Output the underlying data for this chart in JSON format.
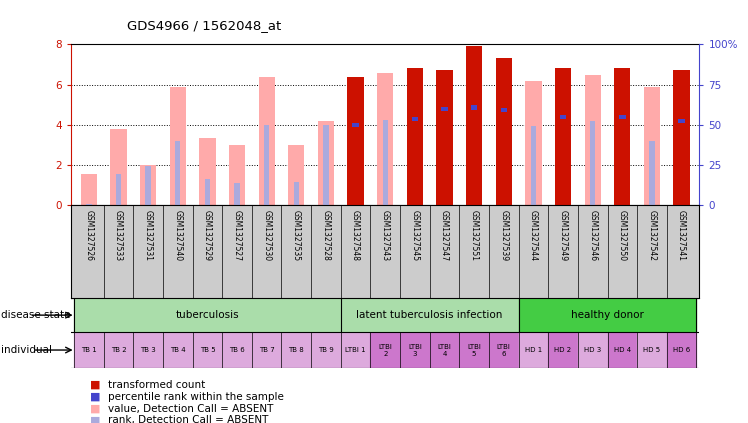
{
  "title": "GDS4966 / 1562048_at",
  "samples": [
    "GSM1327526",
    "GSM1327533",
    "GSM1327531",
    "GSM1327540",
    "GSM1327529",
    "GSM1327527",
    "GSM1327530",
    "GSM1327535",
    "GSM1327528",
    "GSM1327548",
    "GSM1327543",
    "GSM1327545",
    "GSM1327547",
    "GSM1327551",
    "GSM1327539",
    "GSM1327544",
    "GSM1327549",
    "GSM1327546",
    "GSM1327550",
    "GSM1327542",
    "GSM1327541"
  ],
  "pink_bar": [
    1.55,
    3.8,
    2.0,
    5.9,
    3.35,
    3.0,
    6.4,
    3.0,
    4.2,
    6.4,
    6.6,
    6.85,
    6.75,
    7.9,
    7.3,
    6.2,
    6.85,
    6.5,
    6.85,
    5.9,
    6.75
  ],
  "blue_rank_bar": [
    0.05,
    1.55,
    1.95,
    3.2,
    1.3,
    1.1,
    4.0,
    1.15,
    4.0,
    4.0,
    4.25,
    4.3,
    4.8,
    4.85,
    4.75,
    3.95,
    4.4,
    4.2,
    4.4,
    3.2,
    4.2
  ],
  "red_bar": [
    null,
    null,
    null,
    null,
    null,
    null,
    null,
    null,
    null,
    6.4,
    null,
    6.85,
    6.75,
    7.9,
    7.3,
    null,
    6.85,
    null,
    6.85,
    null,
    6.75
  ],
  "blue_dot_val": [
    null,
    null,
    null,
    null,
    null,
    null,
    null,
    null,
    null,
    4.0,
    null,
    4.3,
    4.8,
    4.85,
    4.75,
    null,
    4.4,
    null,
    4.4,
    null,
    4.2
  ],
  "detection_absent": [
    true,
    true,
    true,
    true,
    true,
    true,
    true,
    true,
    true,
    false,
    true,
    false,
    false,
    false,
    false,
    true,
    false,
    true,
    false,
    true,
    false
  ],
  "individual_labels": [
    "TB 1",
    "TB 2",
    "TB 3",
    "TB 4",
    "TB 5",
    "TB 6",
    "TB 7",
    "TB 8",
    "TB 9",
    "LTBI 1",
    "LTBI\n2",
    "LTBI\n3",
    "LTBI\n4",
    "LTBI\n5",
    "LTBI\n6",
    "HD 1",
    "HD 2",
    "HD 3",
    "HD 4",
    "HD 5",
    "HD 6"
  ],
  "individual_colors": [
    "#ddaadd",
    "#ddaadd",
    "#ddaadd",
    "#ddaadd",
    "#ddaadd",
    "#ddaadd",
    "#ddaadd",
    "#ddaadd",
    "#ddaadd",
    "#ddaadd",
    "#cc77cc",
    "#cc77cc",
    "#cc77cc",
    "#cc77cc",
    "#cc77cc",
    "#ddaadd",
    "#cc77cc",
    "#ddaadd",
    "#cc77cc",
    "#ddaadd",
    "#cc77cc"
  ],
  "tb_color": "#aaddaa",
  "ltbi_color": "#aaddaa",
  "hd_color": "#44cc44",
  "ylim": [
    0,
    8
  ],
  "y2lim": [
    0,
    100
  ],
  "bar_width": 0.55,
  "thin_bar_width": 0.18,
  "red_color": "#CC1100",
  "pink_color": "#FFAAAA",
  "blue_color": "#4444CC",
  "light_blue_color": "#AAAADD",
  "label_bg": "#CCCCCC",
  "background_color": "#ffffff"
}
